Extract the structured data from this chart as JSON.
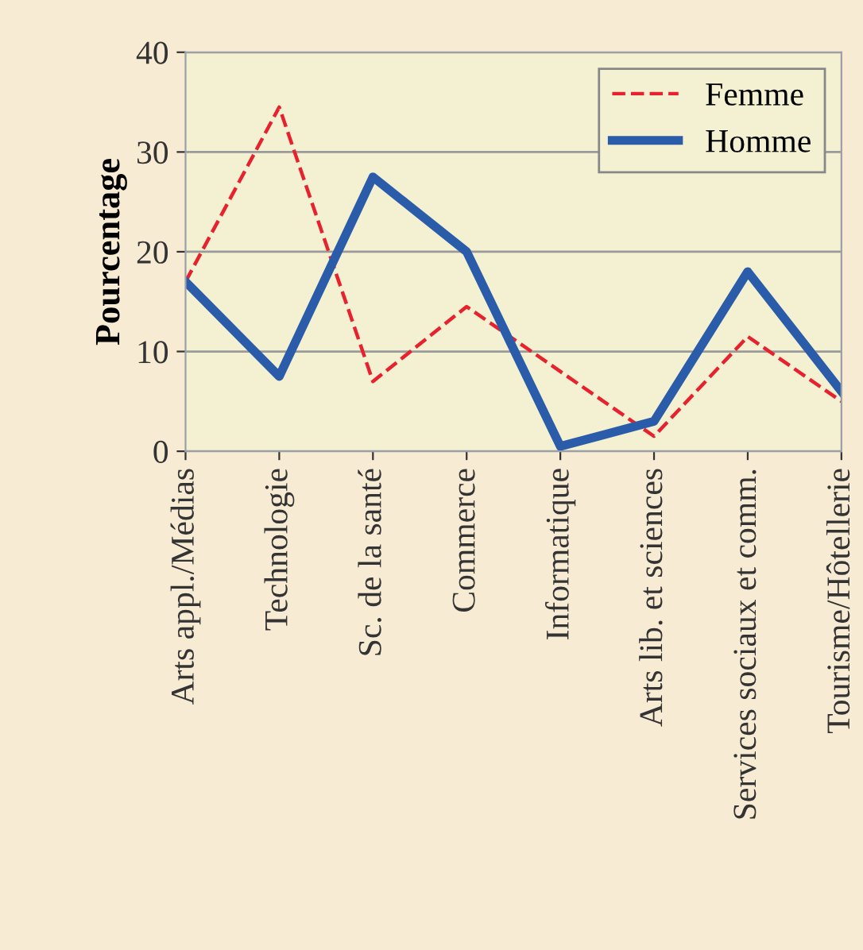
{
  "chart_data": {
    "type": "line",
    "ylabel": "Pourcentage",
    "categories": [
      "Arts appl./Médias",
      "Technologie",
      "Sc. de la santé",
      "Commerce",
      "Informatique",
      "Arts lib. et sciences",
      "Services sociaux et comm.",
      "Tourisme/Hôtellerie"
    ],
    "series": [
      {
        "name": "Femme",
        "color": "#e8212e",
        "line_style": "dashed",
        "values": [
          17,
          34.5,
          7,
          14.5,
          8,
          1.5,
          11.5,
          5
        ]
      },
      {
        "name": "Homme",
        "color": "#2a5caa",
        "line_style": "solid",
        "values": [
          17,
          7.5,
          27.5,
          20,
          0.5,
          3,
          18,
          6
        ]
      }
    ],
    "ylim": [
      0,
      40
    ],
    "yticks": [
      0,
      10,
      20,
      30,
      40
    ],
    "grid": "y",
    "legend": "top right"
  }
}
